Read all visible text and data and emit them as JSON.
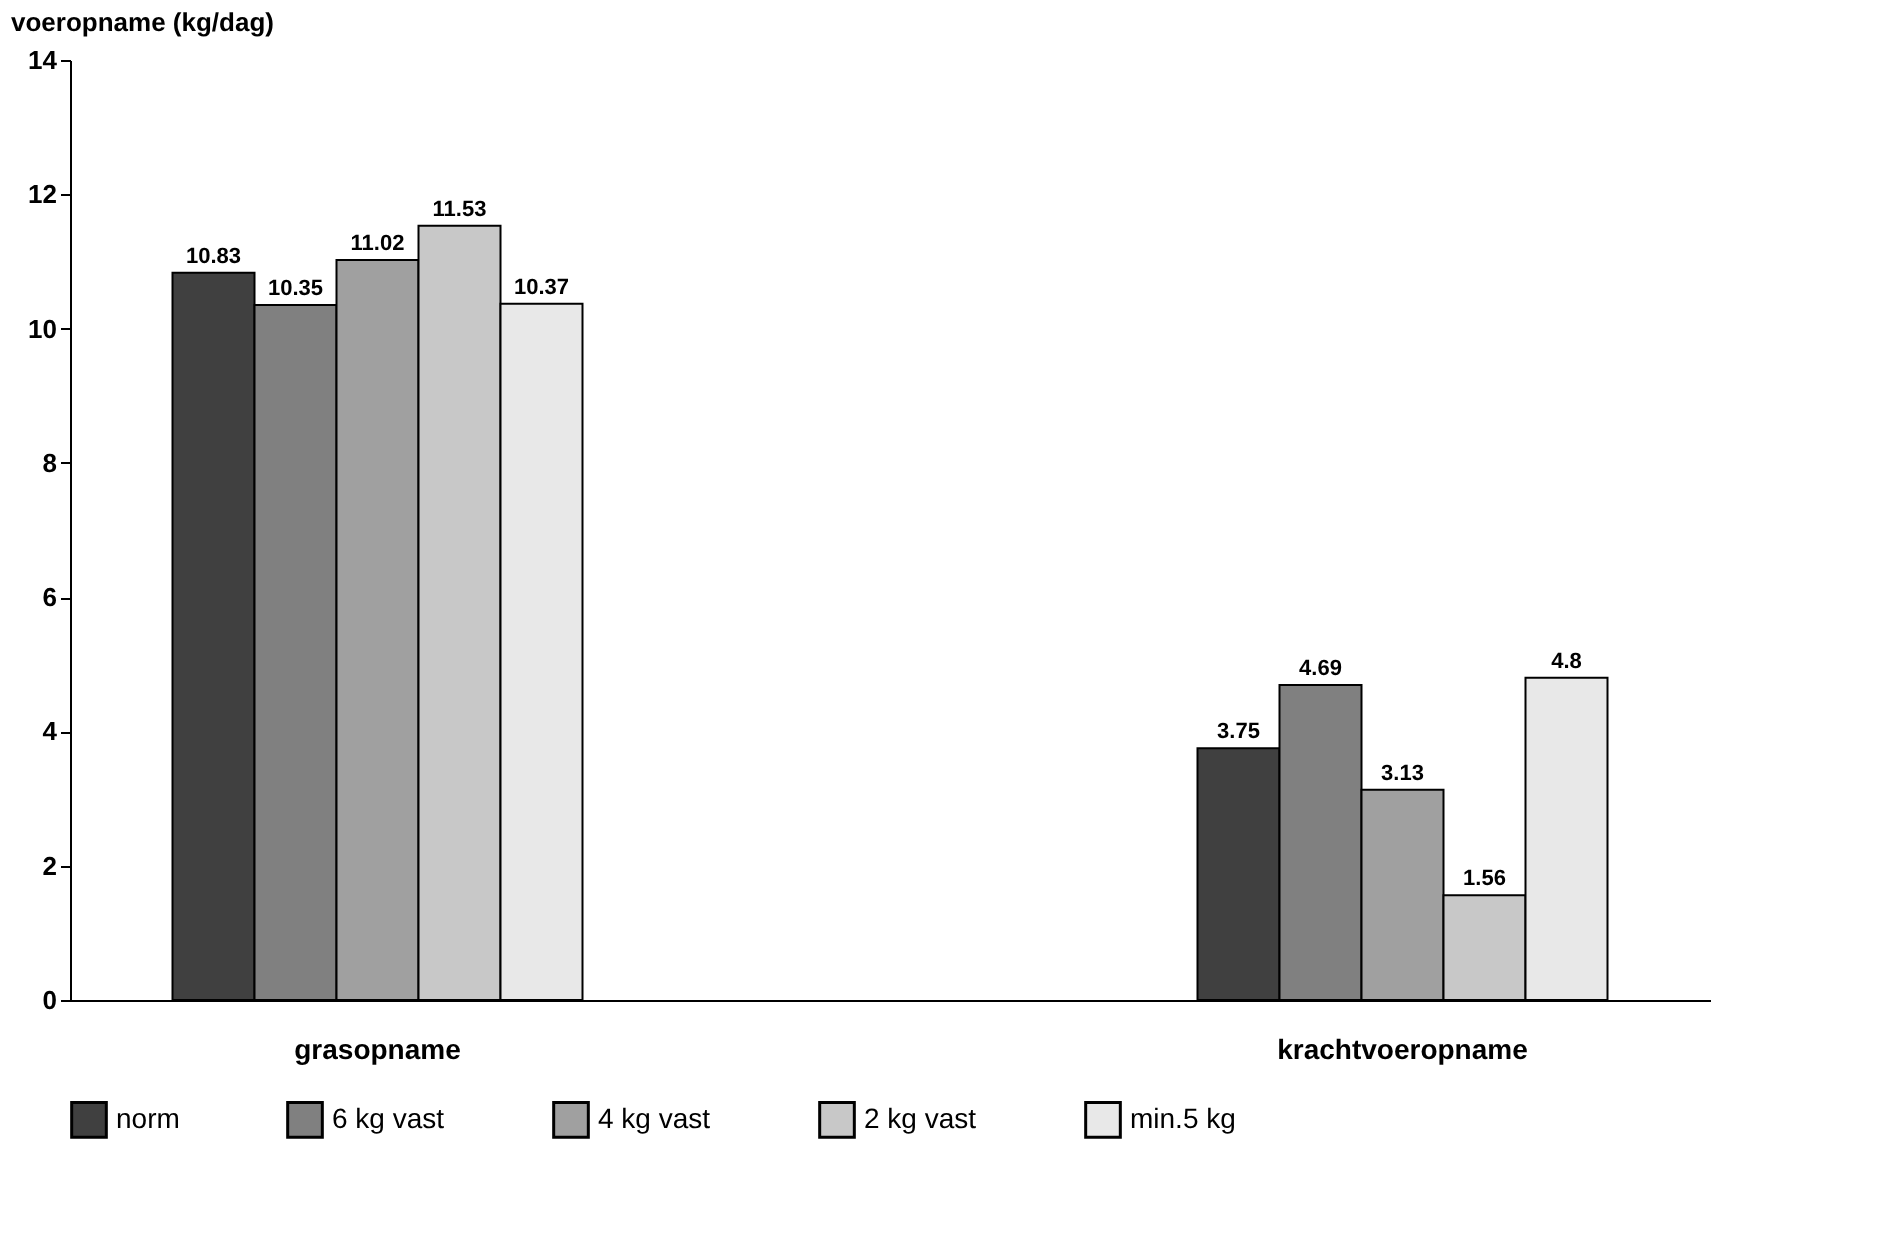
{
  "chart_data": {
    "type": "bar",
    "ylabel": "voeropname (kg/dag)",
    "categories": [
      "grasopname",
      "krachtvoeropname"
    ],
    "series": [
      {
        "name": "norm",
        "color": "#404040",
        "values": [
          10.83,
          3.75
        ]
      },
      {
        "name": "6 kg vast",
        "color": "#808080",
        "values": [
          10.35,
          4.69
        ]
      },
      {
        "name": "4 kg vast",
        "color": "#a0a0a0",
        "values": [
          11.02,
          3.13
        ]
      },
      {
        "name": "2 kg vast",
        "color": "#c8c8c8",
        "values": [
          11.53,
          1.56
        ]
      },
      {
        "name": "min.5 kg",
        "color": "#e8e8e8",
        "values": [
          10.37,
          4.8
        ]
      }
    ],
    "ylim": [
      0,
      14
    ],
    "yticks": [
      0,
      2,
      4,
      6,
      8,
      10,
      12,
      14
    ],
    "data_labels": true,
    "grid": false,
    "legend": "bottom"
  }
}
